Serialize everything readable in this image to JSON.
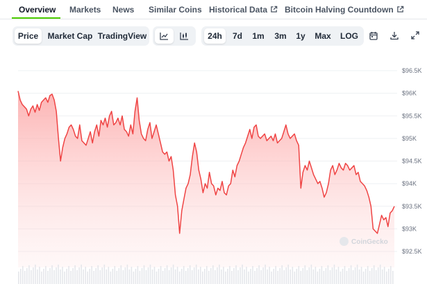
{
  "tabs": [
    {
      "label": "Overview",
      "active": true
    },
    {
      "label": "Markets"
    },
    {
      "label": "News"
    },
    {
      "label": "Similar Coins"
    },
    {
      "label": "Historical Data",
      "external": true
    },
    {
      "label": "Bitcoin Halving Countdown",
      "external": true
    }
  ],
  "toolbar": {
    "metric_tabs": [
      "Price",
      "Market Cap",
      "TradingView"
    ],
    "selected_metric": "Price",
    "chart_type_icons": [
      "line-chart-icon",
      "candlestick-chart-icon"
    ],
    "range_tabs": [
      "24h",
      "7d",
      "1m",
      "3m",
      "1y",
      "Max",
      "LOG"
    ],
    "selected_range": "24h",
    "action_icons": [
      "calendar-icon",
      "download-icon",
      "fullscreen-icon"
    ]
  },
  "watermark": "CoinGecko",
  "colors": {
    "accent_underline": "#4bcc00",
    "line": "#ef4444",
    "fill": "#fecaca",
    "grid": "#eef0f3"
  },
  "chart_data": {
    "type": "area",
    "title": "",
    "xlabel": "",
    "ylabel": "",
    "ylim": [
      92500,
      96500
    ],
    "y_ticks": [
      "$92.5K",
      "$93K",
      "$93.5K",
      "$94K",
      "$94.5K",
      "$95K",
      "$95.5K",
      "$96K",
      "$96.5K"
    ],
    "y_tick_values": [
      92500,
      93000,
      93500,
      94000,
      94500,
      95000,
      95500,
      96000,
      96500
    ],
    "grid": true,
    "series": [
      {
        "values": [
          96050,
          95850,
          95750,
          95700,
          95650,
          95500,
          95650,
          95720,
          95580,
          95750,
          95620,
          95800,
          95850,
          95900,
          95800,
          95950,
          95980,
          95850,
          95600,
          95000,
          94500,
          94800,
          95000,
          95100,
          95250,
          95300,
          95200,
          95050,
          95000,
          95300,
          94950,
          94900,
          94850,
          95000,
          95150,
          94900,
          95150,
          95300,
          95050,
          95400,
          95300,
          95450,
          95250,
          95500,
          95600,
          95300,
          95350,
          95450,
          95300,
          95500,
          95200,
          95150,
          95050,
          95300,
          95100,
          95600,
          95900,
          95400,
          95100,
          95000,
          94950,
          95200,
          95350,
          95000,
          95150,
          95300,
          95100,
          94900,
          94700,
          94650,
          94700,
          94500,
          94600,
          94300,
          93750,
          93500,
          92900,
          93400,
          93650,
          93900,
          94000,
          94200,
          94600,
          94900,
          94700,
          94300,
          94100,
          93800,
          94000,
          93900,
          94250,
          94000,
          93950,
          93750,
          93900,
          93850,
          94050,
          93800,
          93750,
          93950,
          94000,
          94300,
          94150,
          94400,
          94500,
          94650,
          94800,
          94900,
          95050,
          95200,
          95000,
          95250,
          95300,
          95050,
          95000,
          95050,
          95100,
          94950,
          95000,
          95050,
          94950,
          95100,
          94900,
          94950,
          95000,
          95150,
          95300,
          95100,
          95000,
          95050,
          95100,
          94950,
          94850,
          93900,
          94250,
          94400,
          94300,
          94500,
          94350,
          94200,
          94100,
          94000,
          94050,
          93900,
          93700,
          93800,
          94000,
          94300,
          94400,
          94200,
          94300,
          94450,
          94350,
          94300,
          94450,
          94400,
          94300,
          94350,
          94400,
          94200,
          94250,
          94050,
          94000,
          93950,
          93850,
          93700,
          93500,
          93000,
          92950,
          92900,
          93100,
          93300,
          93200,
          93250,
          93050,
          93350,
          93400,
          93500
        ]
      }
    ]
  }
}
